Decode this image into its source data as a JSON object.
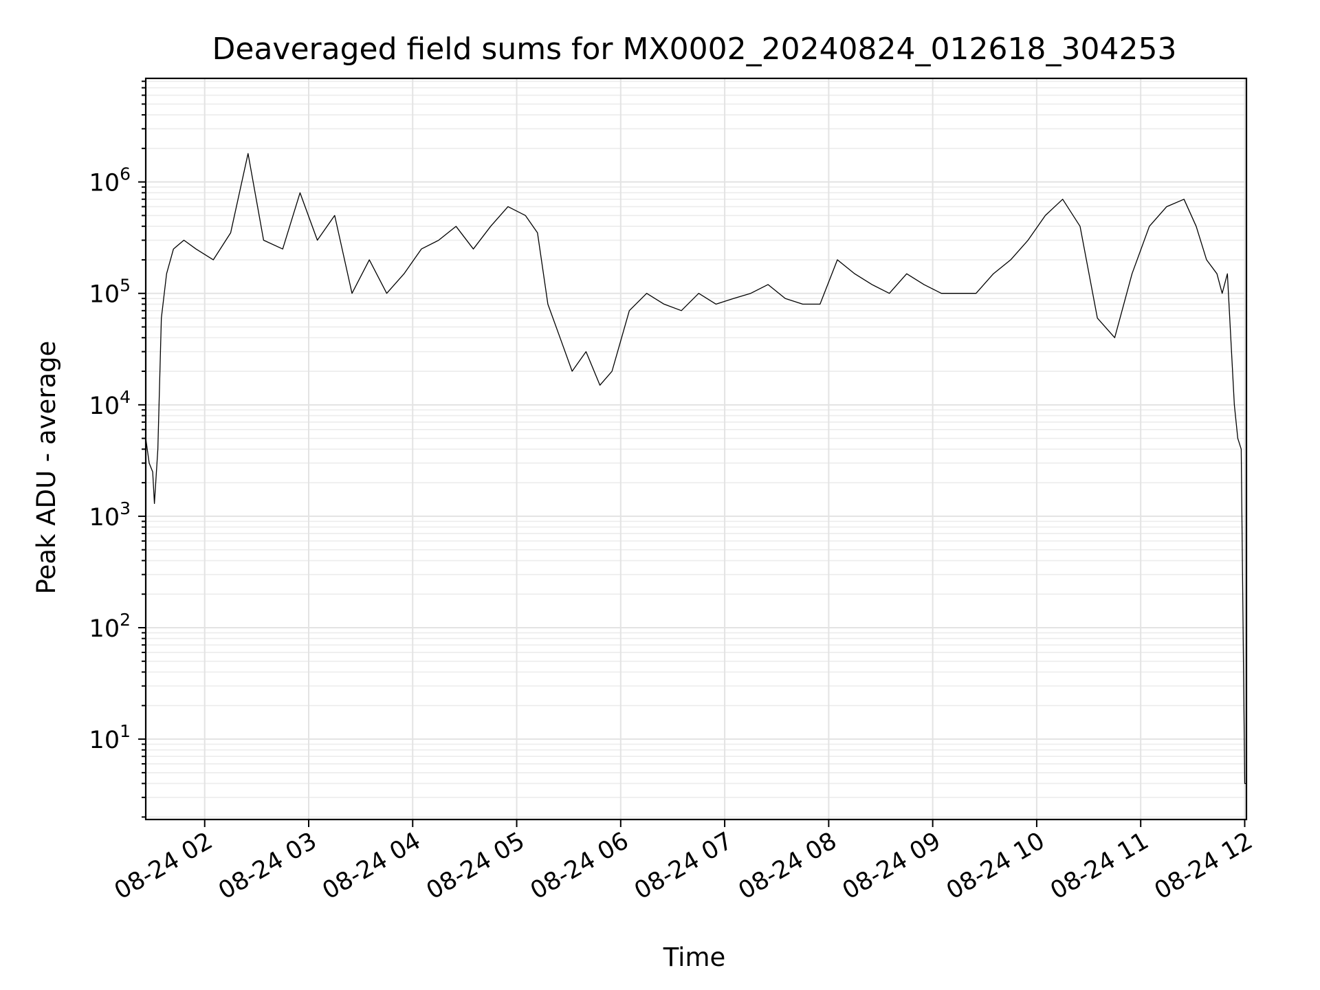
{
  "chart_data": {
    "type": "line",
    "title": "Deaveraged field sums for MX0002_20240824_012618_304253",
    "xlabel": "Time",
    "ylabel": "Peak ADU - average",
    "yscale": "log",
    "ylim": [
      1.9,
      8500000
    ],
    "xlim": [
      "2024-08-24 01:26",
      "2024-08-24 12:01"
    ],
    "grid": "major and minor",
    "line_color": "#000000",
    "x_ticks": [
      "08-24 02",
      "08-24 03",
      "08-24 04",
      "08-24 05",
      "08-24 06",
      "08-24 07",
      "08-24 08",
      "08-24 09",
      "08-24 10",
      "08-24 11",
      "08-24 12"
    ],
    "x_tick_values": [
      "2024-08-24 02:00",
      "2024-08-24 03:00",
      "2024-08-24 04:00",
      "2024-08-24 05:00",
      "2024-08-24 06:00",
      "2024-08-24 07:00",
      "2024-08-24 08:00",
      "2024-08-24 09:00",
      "2024-08-24 10:00",
      "2024-08-24 11:00",
      "2024-08-24 12:00"
    ],
    "y_ticks": [
      {
        "base": "10",
        "exp": "1",
        "value": 10
      },
      {
        "base": "10",
        "exp": "2",
        "value": 100
      },
      {
        "base": "10",
        "exp": "3",
        "value": 1000
      },
      {
        "base": "10",
        "exp": "4",
        "value": 10000
      },
      {
        "base": "10",
        "exp": "5",
        "value": 100000
      },
      {
        "base": "10",
        "exp": "6",
        "value": 1000000
      }
    ],
    "series": [
      {
        "x": [
          "2024-08-24 01:26",
          "2024-08-24 01:28",
          "2024-08-24 01:30",
          "2024-08-24 01:31",
          "2024-08-24 01:33",
          "2024-08-24 01:35",
          "2024-08-24 01:38",
          "2024-08-24 01:42",
          "2024-08-24 01:48",
          "2024-08-24 01:55",
          "2024-08-24 02:05",
          "2024-08-24 02:15",
          "2024-08-24 02:25",
          "2024-08-24 02:34",
          "2024-08-24 02:45",
          "2024-08-24 02:55",
          "2024-08-24 03:05",
          "2024-08-24 03:15",
          "2024-08-24 03:25",
          "2024-08-24 03:35",
          "2024-08-24 03:45",
          "2024-08-24 03:55",
          "2024-08-24 04:05",
          "2024-08-24 04:15",
          "2024-08-24 04:25",
          "2024-08-24 04:35",
          "2024-08-24 04:45",
          "2024-08-24 04:55",
          "2024-08-24 05:05",
          "2024-08-24 05:12",
          "2024-08-24 05:18",
          "2024-08-24 05:25",
          "2024-08-24 05:32",
          "2024-08-24 05:40",
          "2024-08-24 05:48",
          "2024-08-24 05:55",
          "2024-08-24 06:05",
          "2024-08-24 06:15",
          "2024-08-24 06:25",
          "2024-08-24 06:35",
          "2024-08-24 06:45",
          "2024-08-24 06:55",
          "2024-08-24 07:05",
          "2024-08-24 07:15",
          "2024-08-24 07:25",
          "2024-08-24 07:35",
          "2024-08-24 07:45",
          "2024-08-24 07:55",
          "2024-08-24 08:05",
          "2024-08-24 08:15",
          "2024-08-24 08:25",
          "2024-08-24 08:35",
          "2024-08-24 08:45",
          "2024-08-24 08:55",
          "2024-08-24 09:05",
          "2024-08-24 09:15",
          "2024-08-24 09:25",
          "2024-08-24 09:35",
          "2024-08-24 09:45",
          "2024-08-24 09:55",
          "2024-08-24 10:05",
          "2024-08-24 10:15",
          "2024-08-24 10:25",
          "2024-08-24 10:35",
          "2024-08-24 10:45",
          "2024-08-24 10:55",
          "2024-08-24 11:05",
          "2024-08-24 11:15",
          "2024-08-24 11:25",
          "2024-08-24 11:32",
          "2024-08-24 11:38",
          "2024-08-24 11:44",
          "2024-08-24 11:47",
          "2024-08-24 11:50",
          "2024-08-24 11:54",
          "2024-08-24 11:56",
          "2024-08-24 11:58",
          "2024-08-24 12:00",
          "2024-08-24 12:01"
        ],
        "y": [
          5000,
          3000,
          2500,
          1300,
          4000,
          60000,
          150000,
          250000,
          300000,
          250000,
          200000,
          350000,
          1800000,
          300000,
          250000,
          800000,
          300000,
          500000,
          100000,
          200000,
          100000,
          150000,
          250000,
          300000,
          400000,
          250000,
          400000,
          600000,
          500000,
          350000,
          80000,
          40000,
          20000,
          30000,
          15000,
          20000,
          70000,
          100000,
          80000,
          70000,
          100000,
          80000,
          90000,
          100000,
          120000,
          90000,
          80000,
          80000,
          200000,
          150000,
          120000,
          100000,
          150000,
          120000,
          100000,
          100000,
          100000,
          150000,
          200000,
          300000,
          500000,
          700000,
          400000,
          60000,
          40000,
          150000,
          400000,
          600000,
          700000,
          400000,
          200000,
          150000,
          100000,
          150000,
          10000,
          5000,
          4000,
          4,
          4
        ]
      }
    ]
  }
}
